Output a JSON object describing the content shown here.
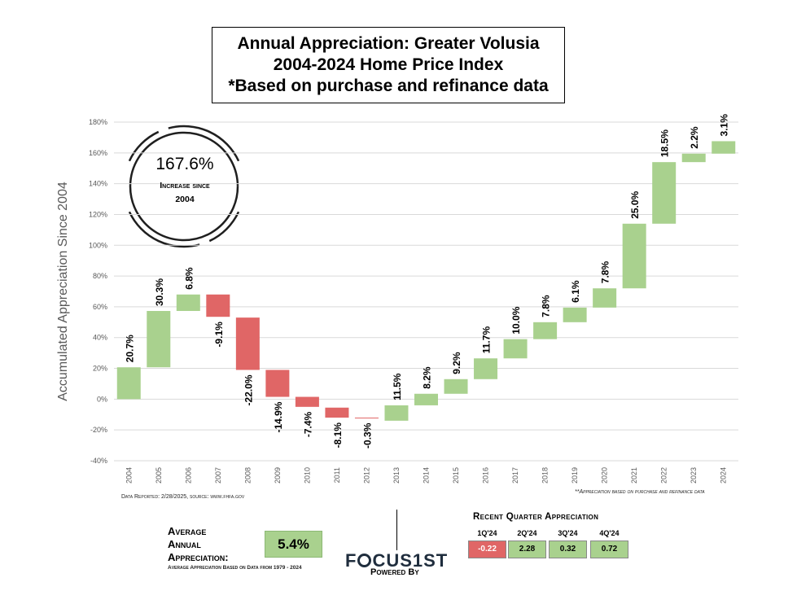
{
  "title": {
    "line1": "Annual Appreciation: Greater Volusia",
    "line2": "2004-2024 Home Price Index",
    "line3": "*Based on purchase and refinance data"
  },
  "circle": {
    "value": "167.6%",
    "label_line1": "Increase since",
    "label_line2": "2004"
  },
  "notes": {
    "source": "Data Reported: 2/28/2025, source: www.fhfa.gov",
    "footnote": "**Appreciation based on purchase and refinance data"
  },
  "average": {
    "label_line1": "Average",
    "label_line2": "Annual",
    "label_line3": "Appreciation:",
    "value": "5.4%",
    "subtext": "Average Appreciation Based on Data from 1979 - 2024"
  },
  "logo": {
    "text_left": "F",
    "text_right": "CUS1ST",
    "powered_by": "Powered By"
  },
  "recent_quarters": {
    "title": "Recent Quarter Appreciation",
    "items": [
      {
        "quarter": "1Q'24",
        "value": "-0.22"
      },
      {
        "quarter": "2Q'24",
        "value": "2.28"
      },
      {
        "quarter": "3Q'24",
        "value": "0.32"
      },
      {
        "quarter": "4Q'24",
        "value": "0.72"
      }
    ]
  },
  "colors": {
    "positive": "#a9d18e",
    "negative": "#e06666",
    "grid": "#d9d9d9",
    "axis_text": "#595959"
  },
  "chart_data": {
    "type": "bar",
    "subtype": "waterfall",
    "ylabel": "Accumulated Appreciation Since 2004",
    "ylim": [
      -40,
      180
    ],
    "yticks": [
      -40,
      -20,
      0,
      20,
      40,
      60,
      80,
      100,
      120,
      140,
      160,
      180
    ],
    "categories": [
      "2004",
      "2005",
      "2006",
      "2007",
      "2008",
      "2009",
      "2010",
      "2011",
      "2012",
      "2013",
      "2014",
      "2015",
      "2016",
      "2017",
      "2018",
      "2019",
      "2020",
      "2021",
      "2022",
      "2023",
      "2024"
    ],
    "bars": [
      {
        "start": 0,
        "end": 20.7,
        "label": "20.7%"
      },
      {
        "start": 20.7,
        "end": 57.3,
        "label": "30.3%"
      },
      {
        "start": 57.3,
        "end": 68.0,
        "label": "6.8%"
      },
      {
        "start": 68.0,
        "end": 53.5,
        "label": "-9.1%"
      },
      {
        "start": 53.0,
        "end": 19.0,
        "label": "-22.0%"
      },
      {
        "start": 19.0,
        "end": 1.5,
        "label": "-14.9%"
      },
      {
        "start": 1.5,
        "end": -5.0,
        "label": "-7.4%"
      },
      {
        "start": -5.5,
        "end": -12.0,
        "label": "-8.1%"
      },
      {
        "start": -12.0,
        "end": -12.3,
        "label": "-0.3%"
      },
      {
        "start": -14.0,
        "end": -4.0,
        "label": "11.5%"
      },
      {
        "start": -4.0,
        "end": 3.5,
        "label": "8.2%"
      },
      {
        "start": 3.5,
        "end": 13.0,
        "label": "9.2%"
      },
      {
        "start": 13.0,
        "end": 26.5,
        "label": "11.7%"
      },
      {
        "start": 26.5,
        "end": 39.0,
        "label": "10.0%"
      },
      {
        "start": 39.0,
        "end": 50.0,
        "label": "7.8%"
      },
      {
        "start": 50.0,
        "end": 59.5,
        "label": "6.1%"
      },
      {
        "start": 59.5,
        "end": 72.0,
        "label": "7.8%"
      },
      {
        "start": 72.0,
        "end": 114.0,
        "label": "25.0%"
      },
      {
        "start": 114.0,
        "end": 154.0,
        "label": "18.5%"
      },
      {
        "start": 154.0,
        "end": 159.5,
        "label": "2.2%"
      },
      {
        "start": 159.5,
        "end": 167.6,
        "label": "3.1%"
      }
    ],
    "grid": true
  }
}
